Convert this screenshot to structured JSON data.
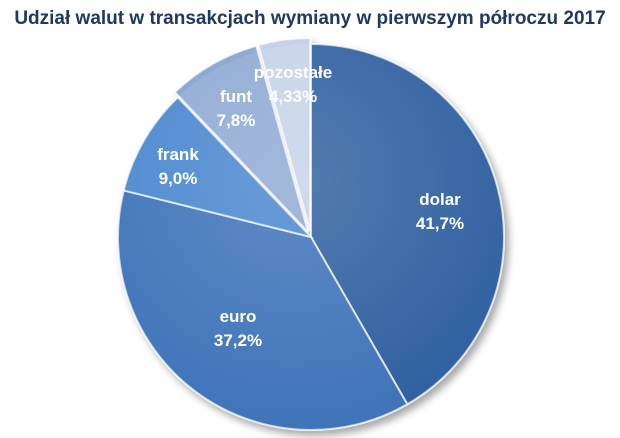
{
  "chart_data": {
    "type": "pie",
    "title": "Udział walut w transakcjach wymiany w pierwszym półroczu 2017",
    "slices": [
      {
        "label": "dolar",
        "value": 41.7,
        "value_label": "41,7%",
        "color": "#2e5f9f"
      },
      {
        "label": "euro",
        "value": 37.2,
        "value_label": "37,2%",
        "color": "#3d72b8"
      },
      {
        "label": "frank",
        "value": 9.0,
        "value_label": "9,0%",
        "color": "#4a86cf"
      },
      {
        "label": "funt",
        "value": 7.8,
        "value_label": "7,8%",
        "color": "#8ea9d3"
      },
      {
        "label": "pozostałe",
        "value": 4.33,
        "value_label": "4,33%",
        "color": "#c6d2e8"
      }
    ],
    "start_angle_deg": 0,
    "direction": "clockwise",
    "legend": "none",
    "data_labels": "inside"
  }
}
